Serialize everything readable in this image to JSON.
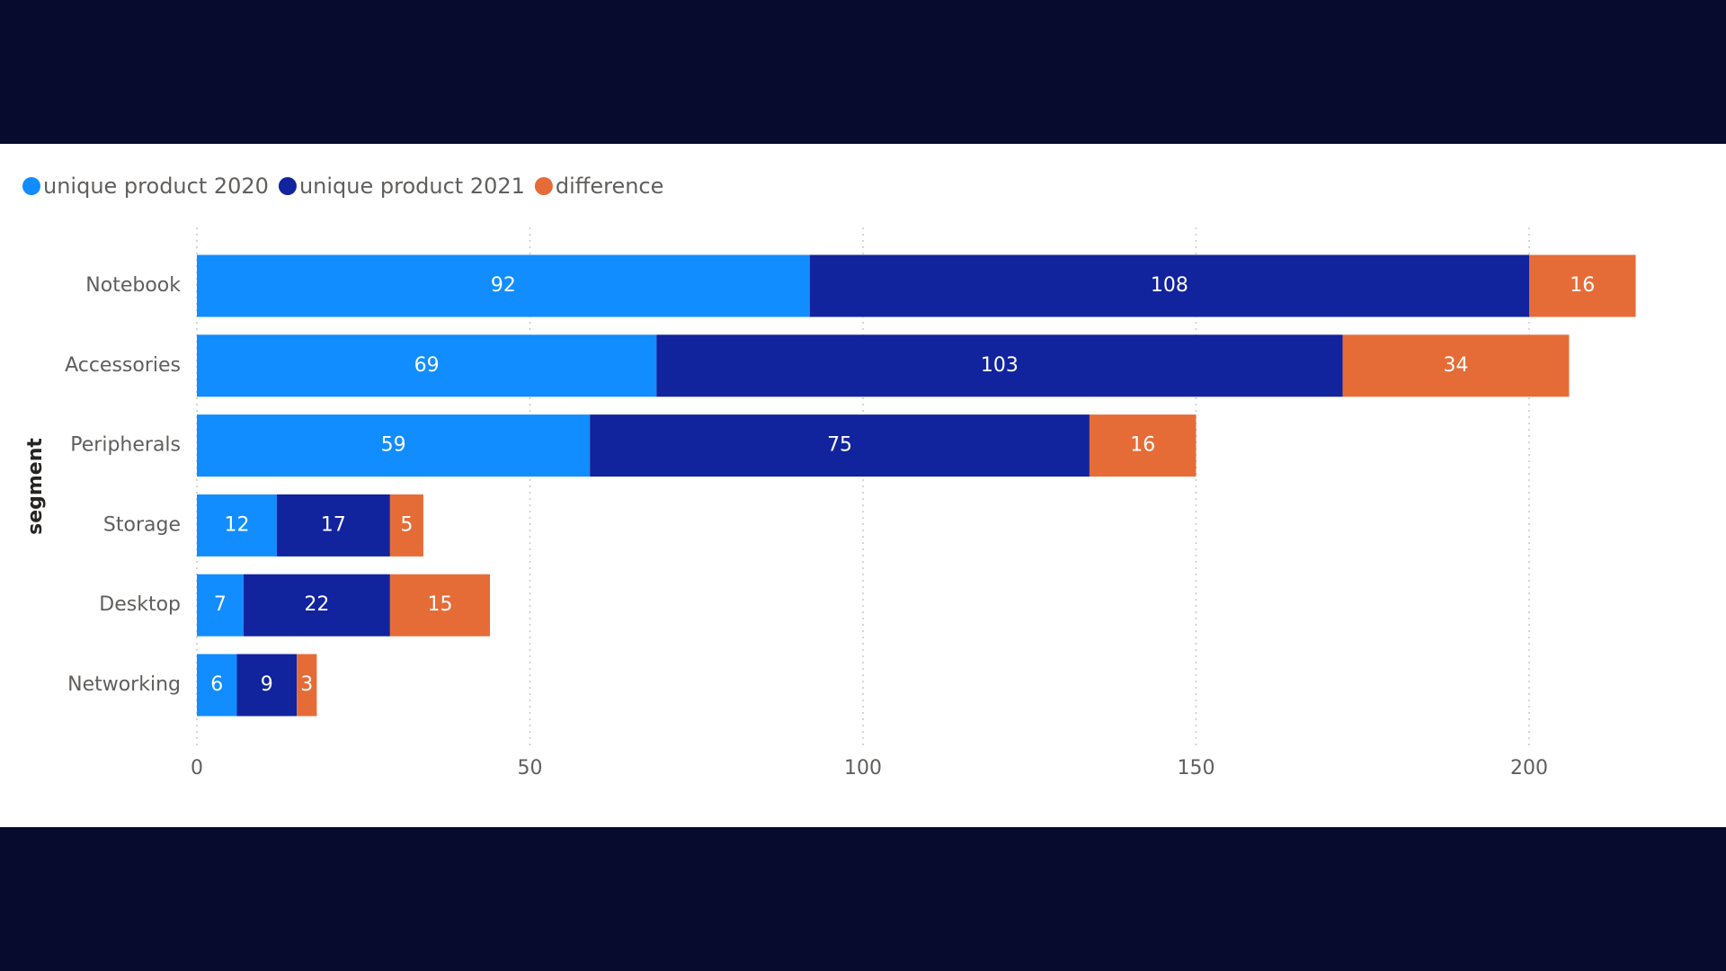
{
  "chart_data": {
    "type": "bar",
    "orientation": "horizontal",
    "stacked": true,
    "y_axis_label": "segment",
    "categories": [
      "Notebook",
      "Accessories",
      "Peripherals",
      "Storage",
      "Desktop",
      "Networking"
    ],
    "series": [
      {
        "name": "unique product 2020",
        "color": "#118dff",
        "values": [
          92,
          69,
          59,
          12,
          7,
          6
        ]
      },
      {
        "name": "unique product 2021",
        "color": "#12239e",
        "values": [
          108,
          103,
          75,
          17,
          22,
          9
        ]
      },
      {
        "name": "difference",
        "color": "#e66c37",
        "values": [
          16,
          34,
          16,
          5,
          15,
          3
        ]
      }
    ],
    "xlim": [
      0,
      216
    ],
    "xticks": [
      0,
      50,
      100,
      150,
      200
    ],
    "grid": true,
    "legend": "top-left"
  }
}
